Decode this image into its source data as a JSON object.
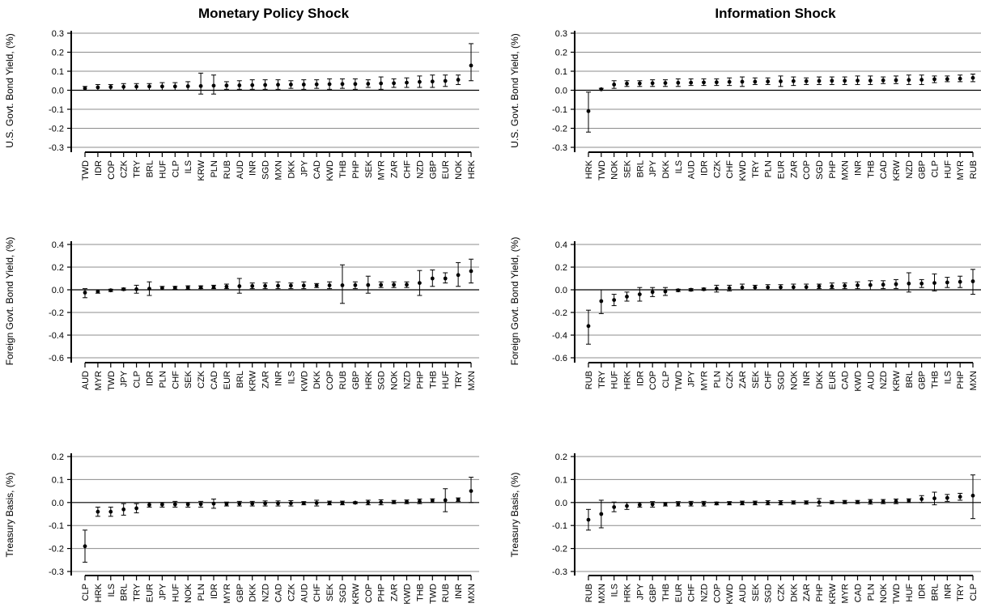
{
  "column_titles": [
    "Monetary Policy Shock",
    "Information Shock"
  ],
  "colors": {
    "ink": "#000000",
    "grid": "#8c8c8c",
    "background": "#ffffff"
  },
  "chart_data": [
    {
      "type": "scatter",
      "title": "Monetary Policy Shock",
      "ylabel": "U.S. Govt. Bond Yield, (%)",
      "ylim": [
        -0.3,
        0.3
      ],
      "yticks": [
        -0.3,
        -0.2,
        -0.1,
        0.0,
        0.1,
        0.2,
        0.3
      ],
      "yticklabels": [
        "-0.3",
        "-0.2",
        "-0.1",
        "0.0",
        "0.1",
        "0.2",
        "0.3"
      ],
      "grid": true,
      "categories": [
        "TWD",
        "IDR",
        "COP",
        "CZK",
        "TRY",
        "BRL",
        "HUF",
        "CLP",
        "ILS",
        "KRW",
        "PLN",
        "RUB",
        "AUD",
        "INR",
        "SGD",
        "MXN",
        "DKK",
        "JPY",
        "CAD",
        "KWD",
        "THB",
        "PHP",
        "SEK",
        "MYR",
        "ZAR",
        "CHF",
        "NZD",
        "GBP",
        "EUR",
        "NOK",
        "HRK"
      ],
      "values": [
        0.01,
        0.015,
        0.017,
        0.018,
        0.019,
        0.02,
        0.02,
        0.02,
        0.021,
        0.022,
        0.024,
        0.025,
        0.026,
        0.027,
        0.028,
        0.029,
        0.03,
        0.03,
        0.031,
        0.032,
        0.033,
        0.033,
        0.034,
        0.036,
        0.037,
        0.04,
        0.044,
        0.046,
        0.049,
        0.055,
        0.13
      ],
      "lower": [
        0.0,
        0.0,
        0.0,
        0.0,
        0.0,
        0.0,
        0.0,
        0.0,
        0.0,
        -0.02,
        -0.02,
        0.005,
        0.005,
        0.005,
        0.005,
        0.005,
        0.01,
        0.005,
        0.01,
        0.005,
        0.01,
        0.005,
        0.015,
        0.005,
        0.015,
        0.015,
        0.015,
        0.015,
        0.02,
        0.03,
        0.05
      ],
      "upper": [
        0.02,
        0.03,
        0.03,
        0.035,
        0.035,
        0.035,
        0.04,
        0.04,
        0.045,
        0.09,
        0.08,
        0.045,
        0.05,
        0.055,
        0.055,
        0.055,
        0.05,
        0.055,
        0.055,
        0.06,
        0.06,
        0.06,
        0.055,
        0.07,
        0.06,
        0.065,
        0.075,
        0.08,
        0.08,
        0.08,
        0.245
      ]
    },
    {
      "type": "scatter",
      "title": "Information Shock",
      "ylabel": "U.S. Govt. Bond Yield, (%)",
      "ylim": [
        -0.3,
        0.3
      ],
      "yticks": [
        -0.3,
        -0.2,
        -0.1,
        0.0,
        0.1,
        0.2,
        0.3
      ],
      "yticklabels": [
        "-0.3",
        "-0.2",
        "-0.1",
        "0.0",
        "0.1",
        "0.2",
        "0.3"
      ],
      "grid": true,
      "categories": [
        "HRK",
        "TWD",
        "NOK",
        "SEK",
        "BRL",
        "JPY",
        "DKK",
        "ILS",
        "AUD",
        "IDR",
        "CZK",
        "CHF",
        "KWD",
        "TRY",
        "PLN",
        "EUR",
        "ZAR",
        "COP",
        "SGD",
        "PHP",
        "MXN",
        "INR",
        "THB",
        "CAD",
        "KRW",
        "NZD",
        "GBP",
        "CLP",
        "HUF",
        "MYR",
        "RUB"
      ],
      "values": [
        -0.11,
        0.005,
        0.03,
        0.035,
        0.036,
        0.037,
        0.038,
        0.039,
        0.04,
        0.041,
        0.042,
        0.044,
        0.045,
        0.045,
        0.046,
        0.047,
        0.048,
        0.048,
        0.049,
        0.05,
        0.05,
        0.051,
        0.051,
        0.052,
        0.053,
        0.054,
        0.055,
        0.058,
        0.059,
        0.061,
        0.065
      ],
      "lower": [
        -0.22,
        0.0,
        0.01,
        0.02,
        0.02,
        0.02,
        0.02,
        0.02,
        0.025,
        0.025,
        0.025,
        0.025,
        0.02,
        0.03,
        0.03,
        0.02,
        0.025,
        0.03,
        0.03,
        0.03,
        0.03,
        0.03,
        0.03,
        0.035,
        0.035,
        0.03,
        0.03,
        0.04,
        0.045,
        0.045,
        0.045
      ],
      "upper": [
        -0.01,
        0.01,
        0.05,
        0.05,
        0.05,
        0.055,
        0.055,
        0.06,
        0.06,
        0.06,
        0.06,
        0.065,
        0.07,
        0.065,
        0.065,
        0.075,
        0.07,
        0.065,
        0.07,
        0.07,
        0.07,
        0.075,
        0.075,
        0.07,
        0.075,
        0.08,
        0.08,
        0.075,
        0.075,
        0.08,
        0.085
      ]
    },
    {
      "type": "scatter",
      "title": "",
      "ylabel": "Foreign Govt. Bond Yield, (%)",
      "ylim": [
        -0.6,
        0.4
      ],
      "yticks": [
        -0.6,
        -0.4,
        -0.2,
        0.0,
        0.2,
        0.4
      ],
      "yticklabels": [
        "-0.6",
        "-0.4",
        "-0.2",
        "0.0",
        "0.2",
        "0.4"
      ],
      "grid": true,
      "categories": [
        "AUD",
        "MYR",
        "TWD",
        "JPY",
        "CLP",
        "IDR",
        "PLN",
        "CHF",
        "SEK",
        "CZK",
        "CAD",
        "EUR",
        "BRL",
        "KRW",
        "ZAR",
        "INR",
        "ILS",
        "KWD",
        "DKK",
        "COP",
        "RUB",
        "GBP",
        "HRK",
        "SGD",
        "NOK",
        "NZD",
        "PHP",
        "THB",
        "HUF",
        "TRY",
        "MXN"
      ],
      "values": [
        -0.025,
        -0.015,
        -0.005,
        0.005,
        0.005,
        0.01,
        0.015,
        0.018,
        0.02,
        0.022,
        0.024,
        0.028,
        0.032,
        0.033,
        0.034,
        0.035,
        0.036,
        0.037,
        0.038,
        0.039,
        0.04,
        0.041,
        0.042,
        0.043,
        0.044,
        0.045,
        0.06,
        0.1,
        0.1,
        0.13,
        0.165
      ],
      "lower": [
        -0.07,
        -0.03,
        -0.015,
        -0.005,
        -0.03,
        -0.05,
        0.0,
        0.005,
        0.005,
        0.01,
        0.01,
        0.01,
        -0.03,
        0.01,
        0.01,
        0.01,
        0.01,
        0.01,
        0.02,
        0.01,
        -0.12,
        0.01,
        -0.03,
        0.02,
        0.02,
        0.02,
        -0.05,
        0.03,
        0.06,
        0.03,
        0.06
      ],
      "upper": [
        0.01,
        0.0,
        0.005,
        0.015,
        0.04,
        0.07,
        0.03,
        0.03,
        0.035,
        0.035,
        0.04,
        0.05,
        0.1,
        0.06,
        0.06,
        0.07,
        0.06,
        0.07,
        0.055,
        0.07,
        0.22,
        0.07,
        0.12,
        0.07,
        0.07,
        0.07,
        0.17,
        0.175,
        0.15,
        0.24,
        0.27
      ]
    },
    {
      "type": "scatter",
      "title": "",
      "ylabel": "Foreign Govt. Bond Yield, (%)",
      "ylim": [
        -0.6,
        0.4
      ],
      "yticks": [
        -0.6,
        -0.4,
        -0.2,
        0.0,
        0.2,
        0.4
      ],
      "yticklabels": [
        "-0.6",
        "-0.4",
        "-0.2",
        "0.0",
        "0.2",
        "0.4"
      ],
      "grid": true,
      "categories": [
        "RUB",
        "TRY",
        "HUF",
        "HRK",
        "IDR",
        "COP",
        "CLP",
        "TWD",
        "JPY",
        "MYR",
        "PLN",
        "CZK",
        "ZAR",
        "SEK",
        "CHF",
        "SGD",
        "NOK",
        "INR",
        "DKK",
        "EUR",
        "CAD",
        "KWD",
        "AUD",
        "NZD",
        "KRW",
        "BRL",
        "GBP",
        "THB",
        "ILS",
        "PHP",
        "MXN"
      ],
      "values": [
        -0.32,
        -0.1,
        -0.09,
        -0.06,
        -0.04,
        -0.02,
        -0.015,
        -0.005,
        0.0,
        0.005,
        0.01,
        0.015,
        0.02,
        0.02,
        0.021,
        0.022,
        0.023,
        0.024,
        0.03,
        0.031,
        0.035,
        0.04,
        0.042,
        0.045,
        0.05,
        0.055,
        0.055,
        0.06,
        0.065,
        0.07,
        0.075
      ],
      "lower": [
        -0.48,
        -0.21,
        -0.14,
        -0.1,
        -0.1,
        -0.06,
        -0.05,
        -0.015,
        -0.01,
        -0.005,
        -0.02,
        -0.01,
        0.0,
        0.0,
        0.0,
        0.0,
        0.0,
        0.0,
        0.01,
        0.01,
        0.01,
        0.01,
        0.0,
        0.01,
        0.01,
        -0.02,
        0.02,
        -0.01,
        0.02,
        0.02,
        -0.04
      ],
      "upper": [
        -0.18,
        0.0,
        -0.04,
        -0.02,
        0.02,
        0.02,
        0.02,
        0.005,
        0.01,
        0.015,
        0.04,
        0.04,
        0.05,
        0.04,
        0.045,
        0.045,
        0.05,
        0.05,
        0.05,
        0.06,
        0.06,
        0.07,
        0.08,
        0.08,
        0.09,
        0.15,
        0.09,
        0.14,
        0.11,
        0.12,
        0.18
      ]
    },
    {
      "type": "scatter",
      "title": "",
      "ylabel": "Treasury Basis, (%)",
      "ylim": [
        -0.3,
        0.2
      ],
      "yticks": [
        -0.3,
        -0.2,
        -0.1,
        0.0,
        0.1,
        0.2
      ],
      "yticklabels": [
        "-0.3",
        "-0.2",
        "-0.1",
        "0.0",
        "0.1",
        "0.2"
      ],
      "grid": true,
      "categories": [
        "CLP",
        "HRK",
        "ILS",
        "BRL",
        "TRY",
        "EUR",
        "JPY",
        "HUF",
        "NOK",
        "PLN",
        "IDR",
        "MYR",
        "GBP",
        "DKK",
        "NZD",
        "CAD",
        "CZK",
        "AUD",
        "CHF",
        "SEK",
        "SGD",
        "KRW",
        "COP",
        "PHP",
        "ZAR",
        "KWD",
        "THB",
        "TWD",
        "RUB",
        "INR",
        "MXN"
      ],
      "values": [
        -0.19,
        -0.04,
        -0.04,
        -0.03,
        -0.025,
        -0.01,
        -0.009,
        -0.008,
        -0.008,
        -0.007,
        -0.005,
        -0.006,
        -0.005,
        -0.005,
        -0.004,
        -0.004,
        -0.003,
        -0.003,
        -0.002,
        -0.002,
        -0.002,
        -0.001,
        0.0,
        0.001,
        0.002,
        0.003,
        0.005,
        0.008,
        0.01,
        0.012,
        0.05
      ],
      "lower": [
        -0.26,
        -0.06,
        -0.06,
        -0.055,
        -0.045,
        -0.02,
        -0.02,
        -0.02,
        -0.02,
        -0.02,
        -0.025,
        -0.015,
        -0.015,
        -0.015,
        -0.015,
        -0.015,
        -0.015,
        -0.01,
        -0.015,
        -0.01,
        -0.01,
        -0.005,
        -0.01,
        -0.01,
        -0.005,
        -0.005,
        -0.005,
        0.0,
        -0.04,
        0.005,
        0.0
      ],
      "upper": [
        -0.12,
        -0.02,
        -0.02,
        -0.005,
        -0.005,
        0.0,
        0.0,
        0.005,
        0.0,
        0.005,
        0.015,
        0.002,
        0.005,
        0.005,
        0.007,
        0.007,
        0.008,
        0.004,
        0.01,
        0.006,
        0.006,
        0.003,
        0.01,
        0.012,
        0.009,
        0.011,
        0.015,
        0.016,
        0.06,
        0.02,
        0.11
      ]
    },
    {
      "type": "scatter",
      "title": "",
      "ylabel": "Treasury Basis, (%)",
      "ylim": [
        -0.3,
        0.2
      ],
      "yticks": [
        -0.3,
        -0.2,
        -0.1,
        0.0,
        0.1,
        0.2
      ],
      "yticklabels": [
        "-0.3",
        "-0.2",
        "-0.1",
        "0.0",
        "0.1",
        "0.2"
      ],
      "grid": true,
      "categories": [
        "RUB",
        "MXN",
        "ILS",
        "HRK",
        "JPY",
        "GBP",
        "THB",
        "EUR",
        "CHF",
        "NZD",
        "COP",
        "KWD",
        "AUD",
        "SEK",
        "SGD",
        "CZK",
        "DKK",
        "ZAR",
        "PHP",
        "KRW",
        "MYR",
        "CAD",
        "PLN",
        "NOK",
        "TWD",
        "HUF",
        "IDR",
        "BRL",
        "INR",
        "TRY",
        "CLP"
      ],
      "values": [
        -0.075,
        -0.05,
        -0.02,
        -0.015,
        -0.01,
        -0.008,
        -0.007,
        -0.006,
        -0.005,
        -0.005,
        -0.004,
        -0.003,
        -0.002,
        -0.002,
        -0.001,
        -0.001,
        0.0,
        0.0,
        0.001,
        0.001,
        0.002,
        0.002,
        0.003,
        0.004,
        0.005,
        0.008,
        0.015,
        0.018,
        0.02,
        0.025,
        0.03
      ],
      "lower": [
        -0.12,
        -0.11,
        -0.04,
        -0.03,
        -0.02,
        -0.02,
        -0.015,
        -0.015,
        -0.015,
        -0.015,
        -0.01,
        -0.01,
        -0.01,
        -0.01,
        -0.01,
        -0.01,
        -0.007,
        -0.007,
        -0.015,
        -0.005,
        -0.005,
        -0.005,
        -0.007,
        -0.005,
        -0.005,
        0.0,
        0.0,
        -0.01,
        0.005,
        0.01,
        -0.07
      ],
      "upper": [
        -0.03,
        0.01,
        0.002,
        0.0,
        0.0,
        0.004,
        0.0,
        0.004,
        0.005,
        0.005,
        0.002,
        0.004,
        0.006,
        0.006,
        0.008,
        0.008,
        0.007,
        0.007,
        0.017,
        0.007,
        0.009,
        0.009,
        0.013,
        0.013,
        0.015,
        0.016,
        0.03,
        0.045,
        0.035,
        0.04,
        0.12
      ]
    }
  ]
}
